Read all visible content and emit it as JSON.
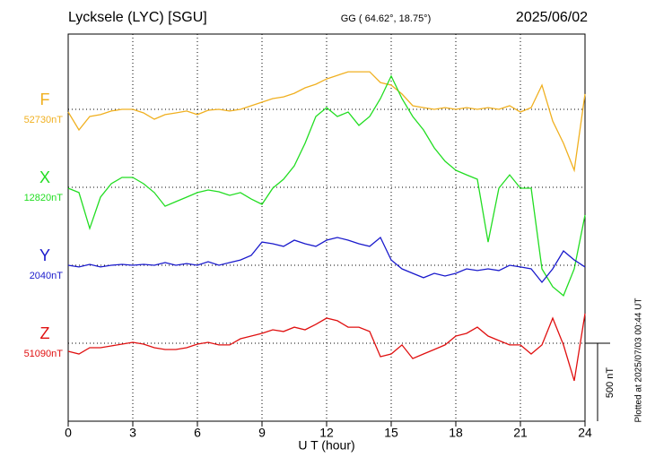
{
  "chart_data": {
    "type": "line",
    "title": "Lycksele (LYC)  [SGU]",
    "subtitle": "GG ( 64.62°,  18.75°)",
    "date": "2025/06/02",
    "xlabel": "U T (hour)",
    "footnote": "Plotted at 2025/07/03 00:44 UT",
    "scale": {
      "value": 500,
      "label": "500 nT"
    },
    "xlim": [
      0,
      24
    ],
    "xticks": [
      0,
      3,
      6,
      9,
      12,
      15,
      18,
      21,
      24
    ],
    "grid": true,
    "x": [
      0,
      0.5,
      1,
      1.5,
      2,
      2.5,
      3,
      3.5,
      4,
      4.5,
      5,
      5.5,
      6,
      6.5,
      7,
      7.5,
      8,
      8.5,
      9,
      9.5,
      10,
      10.5,
      11,
      11.5,
      12,
      12.5,
      13,
      13.5,
      14,
      14.5,
      15,
      15.5,
      16,
      16.5,
      17,
      17.5,
      18,
      18.5,
      19,
      19.5,
      20,
      20.5,
      21,
      21.5,
      22,
      22.5,
      23,
      23.5,
      24
    ],
    "series": [
      {
        "name": "F",
        "color": "#f0b020",
        "baseline": {
          "value": 52730,
          "label": "52730nT"
        },
        "values": [
          52713,
          52598,
          52684,
          52696,
          52719,
          52730,
          52730,
          52707,
          52667,
          52696,
          52707,
          52719,
          52696,
          52724,
          52730,
          52719,
          52730,
          52753,
          52776,
          52799,
          52810,
          52833,
          52868,
          52891,
          52925,
          52948,
          52971,
          52971,
          52971,
          52902,
          52885,
          52828,
          52753,
          52741,
          52730,
          52741,
          52730,
          52741,
          52730,
          52741,
          52730,
          52753,
          52713,
          52741,
          52885,
          52655,
          52512,
          52339,
          52828
        ]
      },
      {
        "name": "X",
        "color": "#22dd22",
        "baseline": {
          "value": 12820,
          "label": "12820nT"
        },
        "values": [
          12814,
          12786,
          12556,
          12757,
          12843,
          12883,
          12883,
          12843,
          12786,
          12699,
          12728,
          12757,
          12786,
          12803,
          12791,
          12768,
          12786,
          12745,
          12711,
          12814,
          12872,
          12958,
          13102,
          13274,
          13331,
          13274,
          13303,
          13217,
          13274,
          13389,
          13533,
          13389,
          13274,
          13188,
          13073,
          12987,
          12929,
          12900,
          12872,
          12469,
          12814,
          12900,
          12814,
          12814,
          12297,
          12182,
          12125,
          12297,
          12642
        ]
      },
      {
        "name": "Y",
        "color": "#1a1acc",
        "baseline": {
          "value": 2040,
          "label": "2040nT"
        },
        "values": [
          2040,
          2029,
          2046,
          2029,
          2040,
          2046,
          2040,
          2046,
          2040,
          2057,
          2040,
          2051,
          2040,
          2063,
          2040,
          2057,
          2074,
          2103,
          2189,
          2178,
          2161,
          2201,
          2178,
          2161,
          2201,
          2218,
          2201,
          2178,
          2161,
          2218,
          2074,
          2017,
          1988,
          1960,
          1988,
          1971,
          1988,
          2017,
          2006,
          2017,
          2006,
          2040,
          2029,
          2017,
          1931,
          2017,
          2132,
          2074,
          2029
        ]
      },
      {
        "name": "Z",
        "color": "#e01010",
        "baseline": {
          "value": 51090,
          "label": "51090nT"
        },
        "values": [
          51038,
          51021,
          51061,
          51061,
          51073,
          51084,
          51096,
          51084,
          51061,
          51050,
          51050,
          51061,
          51084,
          51096,
          51079,
          51079,
          51119,
          51136,
          51153,
          51176,
          51165,
          51193,
          51176,
          51211,
          51251,
          51234,
          51193,
          51193,
          51165,
          51004,
          51021,
          51079,
          50992,
          51021,
          51050,
          51079,
          51136,
          51153,
          51193,
          51136,
          51107,
          51079,
          51079,
          51021,
          51079,
          51251,
          51079,
          50849,
          51280
        ]
      }
    ]
  }
}
